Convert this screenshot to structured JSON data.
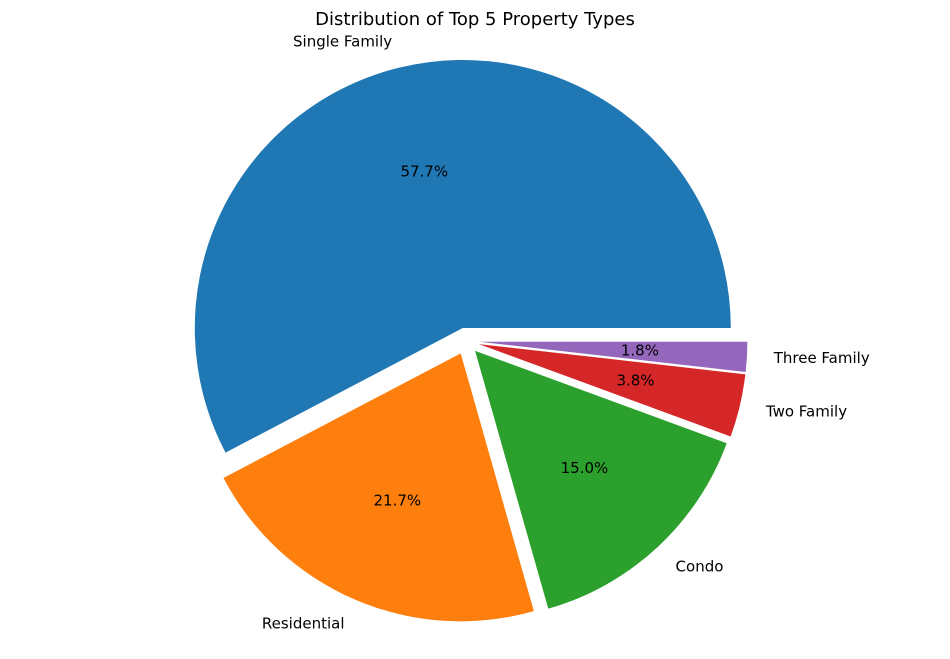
{
  "chart_data": {
    "type": "pie",
    "title": "Distribution of Top 5 Property Types",
    "categories": [
      "Single Family",
      "Residential",
      "Condo",
      "Two Family",
      "Three Family"
    ],
    "values": [
      57.7,
      21.7,
      15.0,
      3.8,
      1.8
    ],
    "value_labels": [
      "57.7%",
      "21.7%",
      "15.0%",
      "3.8%",
      "1.8%"
    ],
    "colors": [
      "#1f77b4",
      "#ff7f0e",
      "#2ca02c",
      "#d62728",
      "#9467bd"
    ],
    "start_angle_deg": 0,
    "direction": "counterclockwise",
    "exploded": true,
    "legend": "none"
  }
}
